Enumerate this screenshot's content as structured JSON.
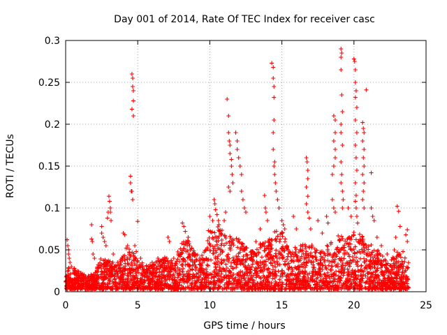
{
  "chart_data": {
    "type": "scatter",
    "title": "Day 001 of 2014, Rate Of TEC Index for receiver casc",
    "xlabel": "GPS time / hours",
    "ylabel": "ROTI / TECUs",
    "xlim": [
      0,
      25
    ],
    "ylim": [
      0,
      0.3
    ],
    "xticks": [
      0,
      5,
      10,
      15,
      20,
      25
    ],
    "xtick_labels": [
      "0",
      "5",
      "10",
      "15",
      "20",
      "25"
    ],
    "yticks": [
      0,
      0.05,
      0.1,
      0.15,
      0.2,
      0.25,
      0.3
    ],
    "ytick_labels": [
      "0",
      "0.05",
      "0.1",
      "0.15",
      "0.2",
      "0.25",
      "0.3"
    ],
    "grid": true,
    "marker": "+",
    "color": "#ff0000",
    "series": [
      {
        "name": "ROTI",
        "points": [
          [
            0.1,
            0.062
          ],
          [
            0.15,
            0.055
          ],
          [
            0.2,
            0.05
          ],
          [
            0.2,
            0.045
          ],
          [
            0.25,
            0.04
          ],
          [
            0.3,
            0.035
          ],
          [
            0.4,
            0.03
          ],
          [
            0.6,
            0.028
          ],
          [
            0.9,
            0.024
          ],
          [
            1.1,
            0.02
          ],
          [
            1.4,
            0.017
          ],
          [
            1.7,
            0.015
          ],
          [
            1.8,
            0.08
          ],
          [
            1.8,
            0.063
          ],
          [
            1.85,
            0.06
          ],
          [
            1.9,
            0.045
          ],
          [
            2.0,
            0.04
          ],
          [
            2.5,
            0.078
          ],
          [
            2.5,
            0.07
          ],
          [
            2.6,
            0.065
          ],
          [
            2.7,
            0.06
          ],
          [
            2.8,
            0.055
          ],
          [
            2.9,
            0.088
          ],
          [
            2.95,
            0.095
          ],
          [
            3.0,
            0.114
          ],
          [
            3.05,
            0.108
          ],
          [
            3.1,
            0.1
          ],
          [
            3.1,
            0.095
          ],
          [
            3.15,
            0.085
          ],
          [
            3.3,
            0.045
          ],
          [
            3.6,
            0.035
          ],
          [
            3.9,
            0.04
          ],
          [
            4.0,
            0.07
          ],
          [
            4.1,
            0.068
          ],
          [
            4.2,
            0.052
          ],
          [
            4.3,
            0.055
          ],
          [
            4.5,
            0.138
          ],
          [
            4.5,
            0.13
          ],
          [
            4.55,
            0.12
          ],
          [
            4.6,
            0.12
          ],
          [
            4.65,
            0.11
          ],
          [
            4.6,
            0.26
          ],
          [
            4.65,
            0.255
          ],
          [
            4.7,
            0.24
          ],
          [
            4.65,
            0.245
          ],
          [
            4.7,
            0.228
          ],
          [
            4.6,
            0.218
          ],
          [
            4.7,
            0.21
          ],
          [
            4.8,
            0.055
          ],
          [
            4.9,
            0.048
          ],
          [
            5.0,
            0.084
          ],
          [
            5.2,
            0.04
          ],
          [
            5.6,
            0.03
          ],
          [
            6.0,
            0.035
          ],
          [
            6.4,
            0.04
          ],
          [
            6.8,
            0.035
          ],
          [
            7.1,
            0.065
          ],
          [
            7.2,
            0.06
          ],
          [
            7.5,
            0.04
          ],
          [
            7.8,
            0.045
          ],
          [
            8.1,
            0.082
          ],
          [
            8.2,
            0.078
          ],
          [
            8.3,
            0.072
          ],
          [
            8.5,
            0.065
          ],
          [
            8.6,
            0.055
          ],
          [
            8.8,
            0.045
          ],
          [
            9.0,
            0.045
          ],
          [
            9.3,
            0.04
          ],
          [
            9.6,
            0.038
          ],
          [
            9.9,
            0.073
          ],
          [
            10.0,
            0.09
          ],
          [
            10.2,
            0.085
          ],
          [
            10.3,
            0.11
          ],
          [
            10.35,
            0.105
          ],
          [
            10.4,
            0.098
          ],
          [
            10.5,
            0.092
          ],
          [
            10.6,
            0.085
          ],
          [
            11.0,
            0.085
          ],
          [
            11.1,
            0.095
          ],
          [
            11.2,
            0.23
          ],
          [
            11.3,
            0.21
          ],
          [
            11.3,
            0.19
          ],
          [
            11.35,
            0.18
          ],
          [
            11.4,
            0.175
          ],
          [
            11.4,
            0.165
          ],
          [
            11.5,
            0.158
          ],
          [
            11.5,
            0.15
          ],
          [
            11.55,
            0.14
          ],
          [
            11.6,
            0.13
          ],
          [
            11.3,
            0.125
          ],
          [
            11.4,
            0.12
          ],
          [
            11.8,
            0.19
          ],
          [
            11.9,
            0.18
          ],
          [
            11.9,
            0.17
          ],
          [
            12.0,
            0.16
          ],
          [
            12.1,
            0.15
          ],
          [
            12.2,
            0.14
          ],
          [
            12.2,
            0.12
          ],
          [
            12.3,
            0.11
          ],
          [
            12.4,
            0.1
          ],
          [
            12.5,
            0.095
          ],
          [
            12.9,
            0.04
          ],
          [
            13.2,
            0.06
          ],
          [
            13.5,
            0.075
          ],
          [
            13.8,
            0.115
          ],
          [
            13.85,
            0.1
          ],
          [
            13.9,
            0.095
          ],
          [
            14.0,
            0.085
          ],
          [
            14.3,
            0.273
          ],
          [
            14.4,
            0.268
          ],
          [
            14.4,
            0.255
          ],
          [
            14.45,
            0.245
          ],
          [
            14.45,
            0.232
          ],
          [
            14.45,
            0.205
          ],
          [
            14.4,
            0.19
          ],
          [
            14.4,
            0.17
          ],
          [
            14.5,
            0.155
          ],
          [
            14.45,
            0.15
          ],
          [
            14.5,
            0.14
          ],
          [
            14.55,
            0.13
          ],
          [
            14.6,
            0.12
          ],
          [
            14.7,
            0.11
          ],
          [
            14.8,
            0.1
          ],
          [
            15.0,
            0.085
          ],
          [
            15.1,
            0.08
          ],
          [
            15.2,
            0.075
          ],
          [
            15.8,
            0.09
          ],
          [
            16.0,
            0.075
          ],
          [
            16.3,
            0.055
          ],
          [
            16.7,
            0.16
          ],
          [
            16.75,
            0.155
          ],
          [
            16.8,
            0.145
          ],
          [
            16.8,
            0.135
          ],
          [
            16.7,
            0.125
          ],
          [
            16.8,
            0.114
          ],
          [
            16.7,
            0.105
          ],
          [
            16.8,
            0.095
          ],
          [
            16.9,
            0.088
          ],
          [
            17.0,
            0.075
          ],
          [
            17.5,
            0.085
          ],
          [
            17.8,
            0.07
          ],
          [
            18.1,
            0.09
          ],
          [
            18.2,
            0.082
          ],
          [
            18.6,
            0.21
          ],
          [
            18.7,
            0.205
          ],
          [
            18.7,
            0.19
          ],
          [
            18.6,
            0.18
          ],
          [
            18.7,
            0.17
          ],
          [
            18.7,
            0.16
          ],
          [
            18.6,
            0.15
          ],
          [
            18.5,
            0.14
          ],
          [
            18.5,
            0.11
          ],
          [
            18.6,
            0.1
          ],
          [
            18.7,
            0.095
          ],
          [
            19.1,
            0.29
          ],
          [
            19.15,
            0.285
          ],
          [
            19.1,
            0.28
          ],
          [
            19.1,
            0.265
          ],
          [
            19.15,
            0.235
          ],
          [
            19.2,
            0.215
          ],
          [
            19.1,
            0.2
          ],
          [
            19.1,
            0.19
          ],
          [
            19.2,
            0.175
          ],
          [
            19.1,
            0.155
          ],
          [
            19.15,
            0.14
          ],
          [
            19.1,
            0.13
          ],
          [
            19.2,
            0.12
          ],
          [
            19.25,
            0.11
          ],
          [
            19.2,
            0.1
          ],
          [
            19.6,
            0.1
          ],
          [
            19.8,
            0.09
          ],
          [
            20.0,
            0.278
          ],
          [
            20.05,
            0.275
          ],
          [
            20.1,
            0.265
          ],
          [
            20.1,
            0.25
          ],
          [
            20.15,
            0.24
          ],
          [
            20.1,
            0.232
          ],
          [
            20.2,
            0.22
          ],
          [
            20.1,
            0.205
          ],
          [
            20.2,
            0.19
          ],
          [
            20.1,
            0.175
          ],
          [
            20.15,
            0.16
          ],
          [
            20.2,
            0.145
          ],
          [
            20.1,
            0.13
          ],
          [
            20.15,
            0.115
          ],
          [
            20.1,
            0.108
          ],
          [
            20.15,
            0.1
          ],
          [
            20.2,
            0.09
          ],
          [
            20.25,
            0.082
          ],
          [
            20.6,
            0.202
          ],
          [
            20.65,
            0.195
          ],
          [
            20.7,
            0.19
          ],
          [
            20.6,
            0.18
          ],
          [
            20.7,
            0.17
          ],
          [
            20.65,
            0.16
          ],
          [
            20.7,
            0.15
          ],
          [
            20.6,
            0.14
          ],
          [
            20.7,
            0.13
          ],
          [
            20.65,
            0.12
          ],
          [
            20.6,
            0.11
          ],
          [
            20.7,
            0.1
          ],
          [
            20.85,
            0.241
          ],
          [
            21.2,
            0.142
          ],
          [
            21.2,
            0.1
          ],
          [
            21.3,
            0.09
          ],
          [
            21.4,
            0.085
          ],
          [
            21.6,
            0.065
          ],
          [
            21.9,
            0.055
          ],
          [
            22.3,
            0.045
          ],
          [
            22.8,
            0.05
          ],
          [
            22.9,
            0.065
          ],
          [
            23.0,
            0.102
          ],
          [
            23.1,
            0.096
          ],
          [
            23.2,
            0.078
          ],
          [
            23.4,
            0.048
          ],
          [
            23.6,
            0.068
          ],
          [
            23.7,
            0.074
          ],
          [
            23.7,
            0.06
          ]
        ],
        "dense_band": {
          "description_free": true,
          "envelope": [
            [
              0.0,
              0.03
            ],
            [
              0.5,
              0.025
            ],
            [
              1.0,
              0.02
            ],
            [
              1.5,
              0.016
            ],
            [
              2.0,
              0.02
            ],
            [
              2.5,
              0.04
            ],
            [
              3.0,
              0.035
            ],
            [
              3.5,
              0.03
            ],
            [
              4.0,
              0.04
            ],
            [
              4.5,
              0.05
            ],
            [
              5.0,
              0.035
            ],
            [
              5.5,
              0.03
            ],
            [
              6.0,
              0.03
            ],
            [
              6.5,
              0.035
            ],
            [
              7.0,
              0.04
            ],
            [
              7.5,
              0.035
            ],
            [
              8.0,
              0.055
            ],
            [
              8.5,
              0.06
            ],
            [
              9.0,
              0.045
            ],
            [
              9.5,
              0.04
            ],
            [
              10.0,
              0.07
            ],
            [
              10.5,
              0.08
            ],
            [
              11.0,
              0.07
            ],
            [
              11.5,
              0.065
            ],
            [
              12.0,
              0.06
            ],
            [
              12.5,
              0.05
            ],
            [
              13.0,
              0.045
            ],
            [
              13.5,
              0.055
            ],
            [
              14.0,
              0.06
            ],
            [
              14.5,
              0.07
            ],
            [
              15.0,
              0.07
            ],
            [
              15.5,
              0.05
            ],
            [
              16.0,
              0.05
            ],
            [
              16.5,
              0.055
            ],
            [
              17.0,
              0.055
            ],
            [
              17.5,
              0.045
            ],
            [
              18.0,
              0.05
            ],
            [
              18.5,
              0.06
            ],
            [
              19.0,
              0.065
            ],
            [
              19.5,
              0.06
            ],
            [
              20.0,
              0.07
            ],
            [
              20.5,
              0.065
            ],
            [
              21.0,
              0.055
            ],
            [
              21.5,
              0.05
            ],
            [
              22.0,
              0.04
            ],
            [
              22.5,
              0.035
            ],
            [
              23.0,
              0.045
            ],
            [
              23.5,
              0.04
            ],
            [
              23.8,
              0.035
            ]
          ]
        }
      }
    ]
  }
}
